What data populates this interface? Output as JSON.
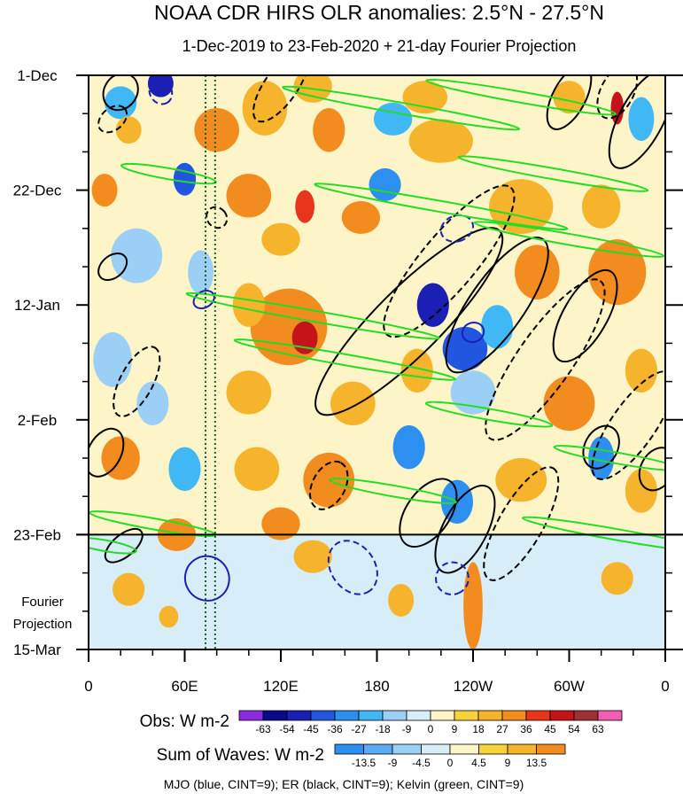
{
  "chart_data": {
    "type": "heatmap",
    "title": "NOAA CDR HIRS OLR anomalies: 2.5°N - 27.5°N",
    "subtitle": "1-Dec-2019 to 23-Feb-2020 + 21-day Fourier Projection",
    "x_axis": {
      "ticks": [
        "0",
        "60E",
        "120E",
        "180",
        "120W",
        "60W",
        "0"
      ],
      "tick_lon": [
        0,
        60,
        120,
        180,
        240,
        300,
        360
      ],
      "range": [
        0,
        360
      ]
    },
    "y_axis": {
      "ticks": [
        "1-Dec",
        "22-Dec",
        "12-Jan",
        "2-Feb",
        "23-Feb",
        "15-Mar"
      ],
      "tick_day": [
        0,
        21,
        42,
        63,
        84,
        105
      ],
      "range_dates": [
        "2019-12-01",
        "2020-03-15"
      ],
      "reversed": true
    },
    "projection_label": [
      "Fourier",
      "Projection"
    ],
    "projection_start": "2020-02-23",
    "reference_lines": [
      {
        "style": "dotted",
        "lon": 73
      },
      {
        "style": "dotted",
        "lon": 79
      }
    ],
    "obs_colorbar": {
      "label": "Obs: W m-2",
      "levels": [
        "-63",
        "-54",
        "-45",
        "-36",
        "-27",
        "-18",
        "-9",
        "0",
        "9",
        "18",
        "27",
        "36",
        "45",
        "54",
        "63"
      ],
      "colors": [
        "#8a2be2",
        "#0a0a8c",
        "#1b1fb4",
        "#2356e0",
        "#2d8ff0",
        "#3fb8f5",
        "#9ccff5",
        "#d7edf7",
        "#fdf5c8",
        "#f7d33a",
        "#f5b42c",
        "#f28c1e",
        "#e8361c",
        "#c4141a",
        "#9e3232",
        "#f05fb4"
      ]
    },
    "wave_colorbar": {
      "label": "Sum of Waves: W m-2",
      "levels": [
        "-13.5",
        "-9",
        "-4.5",
        "0",
        "4.5",
        "9",
        "13.5"
      ],
      "colors": [
        "#2d8ff0",
        "#5aabf2",
        "#9ccff5",
        "#d7edf7",
        "#fdf5c8",
        "#f7d33a",
        "#f5b42c",
        "#f28c1e"
      ]
    },
    "footnote": "MJO (blue, CINT=9); ER (black, CINT=9); Kelvin (green, CINT=9)",
    "series": [
      {
        "wave": "MJO",
        "color": "#1b1fb4",
        "cint": 9
      },
      {
        "wave": "ER",
        "color": "#000000",
        "cint": 9
      },
      {
        "wave": "Kelvin",
        "color": "#22dd22",
        "cint": 9
      }
    ],
    "anomaly_blobs": [
      {
        "lon": 45,
        "day": 1.5,
        "rx": 8,
        "ry": 2.5,
        "v": -54
      },
      {
        "lon": 20,
        "day": 5,
        "rx": 10,
        "ry": 3,
        "v": -27
      },
      {
        "lon": 25,
        "day": 10,
        "rx": 8,
        "ry": 2.5,
        "v": 18
      },
      {
        "lon": 60,
        "day": 19,
        "rx": 7,
        "ry": 3,
        "v": -45
      },
      {
        "lon": 80,
        "day": 10,
        "rx": 14,
        "ry": 4,
        "v": 27
      },
      {
        "lon": 110,
        "day": 6,
        "rx": 14,
        "ry": 5,
        "v": 18
      },
      {
        "lon": 140,
        "day": 2,
        "rx": 12,
        "ry": 3,
        "v": 18
      },
      {
        "lon": 150,
        "day": 10,
        "rx": 10,
        "ry": 4,
        "v": 27
      },
      {
        "lon": 210,
        "day": 4,
        "rx": 14,
        "ry": 3,
        "v": 18
      },
      {
        "lon": 190,
        "day": 8,
        "rx": 12,
        "ry": 3,
        "v": -27
      },
      {
        "lon": 220,
        "day": 12,
        "rx": 20,
        "ry": 4,
        "v": 18
      },
      {
        "lon": 300,
        "day": 4,
        "rx": 10,
        "ry": 3,
        "v": 18
      },
      {
        "lon": 330,
        "day": 6,
        "rx": 4,
        "ry": 3,
        "v": 45
      },
      {
        "lon": 345,
        "day": 8,
        "rx": 8,
        "ry": 4,
        "v": -27
      },
      {
        "lon": 10,
        "day": 21,
        "rx": 8,
        "ry": 3,
        "v": 27
      },
      {
        "lon": 100,
        "day": 22,
        "rx": 14,
        "ry": 4,
        "v": 27
      },
      {
        "lon": 135,
        "day": 24,
        "rx": 6,
        "ry": 3,
        "v": 36
      },
      {
        "lon": 120,
        "day": 30,
        "rx": 12,
        "ry": 3,
        "v": 18
      },
      {
        "lon": 185,
        "day": 20,
        "rx": 10,
        "ry": 3,
        "v": -36
      },
      {
        "lon": 170,
        "day": 26,
        "rx": 12,
        "ry": 3,
        "v": 27
      },
      {
        "lon": 270,
        "day": 24,
        "rx": 20,
        "ry": 5,
        "v": 18
      },
      {
        "lon": 320,
        "day": 24,
        "rx": 12,
        "ry": 4,
        "v": 18
      },
      {
        "lon": 330,
        "day": 36,
        "rx": 18,
        "ry": 6,
        "v": 27
      },
      {
        "lon": 30,
        "day": 33,
        "rx": 16,
        "ry": 5,
        "v": -18
      },
      {
        "lon": 70,
        "day": 36,
        "rx": 8,
        "ry": 4,
        "v": -18
      },
      {
        "lon": 125,
        "day": 46,
        "rx": 24,
        "ry": 7,
        "v": 27
      },
      {
        "lon": 135,
        "day": 48,
        "rx": 8,
        "ry": 3,
        "v": 45
      },
      {
        "lon": 100,
        "day": 42,
        "rx": 10,
        "ry": 4,
        "v": 18
      },
      {
        "lon": 215,
        "day": 42,
        "rx": 10,
        "ry": 4,
        "v": -54
      },
      {
        "lon": 235,
        "day": 50,
        "rx": 14,
        "ry": 4,
        "v": -45
      },
      {
        "lon": 255,
        "day": 46,
        "rx": 10,
        "ry": 4,
        "v": -27
      },
      {
        "lon": 280,
        "day": 36,
        "rx": 14,
        "ry": 5,
        "v": 27
      },
      {
        "lon": 205,
        "day": 54,
        "rx": 10,
        "ry": 4,
        "v": 18
      },
      {
        "lon": 240,
        "day": 58,
        "rx": 14,
        "ry": 4,
        "v": -18
      },
      {
        "lon": 15,
        "day": 52,
        "rx": 12,
        "ry": 5,
        "v": -18
      },
      {
        "lon": 40,
        "day": 60,
        "rx": 10,
        "ry": 4,
        "v": -18
      },
      {
        "lon": 100,
        "day": 58,
        "rx": 14,
        "ry": 4,
        "v": 18
      },
      {
        "lon": 165,
        "day": 60,
        "rx": 14,
        "ry": 4,
        "v": 18
      },
      {
        "lon": 300,
        "day": 60,
        "rx": 16,
        "ry": 5,
        "v": 27
      },
      {
        "lon": 345,
        "day": 54,
        "rx": 10,
        "ry": 4,
        "v": 18
      },
      {
        "lon": 20,
        "day": 70,
        "rx": 12,
        "ry": 4,
        "v": 27
      },
      {
        "lon": 60,
        "day": 72,
        "rx": 10,
        "ry": 4,
        "v": -27
      },
      {
        "lon": 105,
        "day": 72,
        "rx": 14,
        "ry": 4,
        "v": 18
      },
      {
        "lon": 150,
        "day": 74,
        "rx": 16,
        "ry": 5,
        "v": 27
      },
      {
        "lon": 200,
        "day": 68,
        "rx": 10,
        "ry": 4,
        "v": -36
      },
      {
        "lon": 230,
        "day": 78,
        "rx": 10,
        "ry": 4,
        "v": -36
      },
      {
        "lon": 270,
        "day": 74,
        "rx": 16,
        "ry": 4,
        "v": 18
      },
      {
        "lon": 320,
        "day": 70,
        "rx": 8,
        "ry": 4,
        "v": -36
      },
      {
        "lon": 345,
        "day": 76,
        "rx": 10,
        "ry": 4,
        "v": 18
      },
      {
        "lon": 55,
        "day": 84,
        "rx": 12,
        "ry": 3,
        "v": 18
      },
      {
        "lon": 120,
        "day": 82,
        "rx": 12,
        "ry": 3,
        "v": 27
      },
      {
        "lon": 50,
        "day": 99,
        "rx": 6,
        "ry": 2,
        "v": 9
      },
      {
        "lon": 195,
        "day": 96,
        "rx": 8,
        "ry": 3,
        "v": 9
      },
      {
        "lon": 240,
        "day": 97,
        "rx": 6,
        "ry": 8,
        "v": 13.5
      },
      {
        "lon": 140,
        "day": 88,
        "rx": 12,
        "ry": 3,
        "v": 9
      },
      {
        "lon": 330,
        "day": 92,
        "rx": 10,
        "ry": 3,
        "v": 9
      },
      {
        "lon": 70,
        "day": 92,
        "rx": 8,
        "ry": 3,
        "v": -4.5
      },
      {
        "lon": 25,
        "day": 94,
        "rx": 10,
        "ry": 3,
        "v": 9
      }
    ],
    "contours": [
      {
        "wave": "ER",
        "dashed": false,
        "lon": 345,
        "day": 8,
        "rx": 34,
        "ry": 4,
        "rot": -62
      },
      {
        "wave": "ER",
        "dashed": false,
        "lon": 300,
        "day": 4,
        "rx": 22,
        "ry": 3,
        "rot": -62
      },
      {
        "wave": "ER",
        "dashed": true,
        "lon": 330,
        "day": 3,
        "rx": 18,
        "ry": 3,
        "rot": -62
      },
      {
        "wave": "ER",
        "dashed": false,
        "lon": 200,
        "day": 45,
        "rx": 80,
        "ry": 6,
        "rot": -45
      },
      {
        "wave": "ER",
        "dashed": true,
        "lon": 225,
        "day": 34,
        "rx": 60,
        "ry": 5,
        "rot": -50
      },
      {
        "wave": "ER",
        "dashed": false,
        "lon": 255,
        "day": 42,
        "rx": 50,
        "ry": 5,
        "rot": -55
      },
      {
        "wave": "ER",
        "dashed": true,
        "lon": 285,
        "day": 52,
        "rx": 60,
        "ry": 5,
        "rot": -55
      },
      {
        "wave": "ER",
        "dashed": false,
        "lon": 310,
        "day": 44,
        "rx": 32,
        "ry": 4,
        "rot": -60
      },
      {
        "wave": "ER",
        "dashed": true,
        "lon": 340,
        "day": 64,
        "rx": 40,
        "ry": 4,
        "rot": -55
      },
      {
        "wave": "ER",
        "dashed": true,
        "lon": 270,
        "day": 82,
        "rx": 40,
        "ry": 4,
        "rot": -60
      },
      {
        "wave": "ER",
        "dashed": false,
        "lon": 235,
        "day": 83,
        "rx": 30,
        "ry": 4,
        "rot": -62
      },
      {
        "wave": "ER",
        "dashed": false,
        "lon": 212,
        "day": 80,
        "rx": 24,
        "ry": 4,
        "rot": -55
      },
      {
        "wave": "ER",
        "dashed": true,
        "lon": 120,
        "day": 2,
        "rx": 26,
        "ry": 3,
        "rot": -55
      },
      {
        "wave": "ER",
        "dashed": false,
        "lon": 20,
        "day": 3,
        "rx": 12,
        "ry": 3,
        "rot": -55
      },
      {
        "wave": "ER",
        "dashed": true,
        "lon": 15,
        "day": 8,
        "rx": 10,
        "ry": 2,
        "rot": -40
      },
      {
        "wave": "ER",
        "dashed": true,
        "lon": 30,
        "day": 56,
        "rx": 24,
        "ry": 3,
        "rot": -62
      },
      {
        "wave": "ER",
        "dashed": false,
        "lon": 10,
        "day": 69,
        "rx": 16,
        "ry": 3,
        "rot": -62
      },
      {
        "wave": "ER",
        "dashed": false,
        "lon": 22,
        "day": 86,
        "rx": 14,
        "ry": 2,
        "rot": -40
      },
      {
        "wave": "ER",
        "dashed": true,
        "lon": 150,
        "day": 75,
        "rx": 16,
        "ry": 3,
        "rot": -62
      },
      {
        "wave": "ER",
        "dashed": false,
        "lon": 320,
        "day": 68,
        "rx": 14,
        "ry": 3,
        "rot": -62
      },
      {
        "wave": "ER",
        "dashed": false,
        "lon": 355,
        "day": 72,
        "rx": 14,
        "ry": 3,
        "rot": -62
      },
      {
        "wave": "ER",
        "dashed": true,
        "lon": 80,
        "day": 26,
        "rx": 6,
        "ry": 2,
        "rot": -40
      },
      {
        "wave": "ER",
        "dashed": false,
        "lon": 15,
        "day": 35,
        "rx": 10,
        "ry": 2,
        "rot": -40
      },
      {
        "wave": "MJO",
        "dashed": false,
        "lon": 74,
        "day": 92,
        "rx": 14,
        "ry": 4,
        "rot": 55
      },
      {
        "wave": "MJO",
        "dashed": true,
        "lon": 165,
        "day": 90,
        "rx": 18,
        "ry": 4,
        "rot": 55
      },
      {
        "wave": "MJO",
        "dashed": true,
        "lon": 227,
        "day": 92,
        "rx": 10,
        "ry": 3,
        "rot": 60
      },
      {
        "wave": "MJO",
        "dashed": true,
        "lon": 230,
        "day": 28,
        "rx": 8,
        "ry": 3,
        "rot": 70
      },
      {
        "wave": "MJO",
        "dashed": false,
        "lon": 240,
        "day": 47,
        "rx": 6,
        "ry": 2,
        "rot": 70
      },
      {
        "wave": "MJO",
        "dashed": false,
        "lon": 72,
        "day": 41,
        "rx": 5,
        "ry": 2,
        "rot": 60
      },
      {
        "wave": "MJO",
        "dashed": true,
        "lon": 45,
        "day": 3,
        "rx": 8,
        "ry": 2,
        "rot": 60
      },
      {
        "wave": "Kelvin",
        "dashed": false,
        "lon": 195,
        "day": 6,
        "rx": 75,
        "ry": 1,
        "rot": 10
      },
      {
        "wave": "Kelvin",
        "dashed": false,
        "lon": 270,
        "day": 4,
        "rx": 60,
        "ry": 1,
        "rot": 10
      },
      {
        "wave": "Kelvin",
        "dashed": false,
        "lon": 220,
        "day": 24,
        "rx": 80,
        "ry": 1,
        "rot": 10
      },
      {
        "wave": "Kelvin",
        "dashed": false,
        "lon": 140,
        "day": 44,
        "rx": 80,
        "ry": 1,
        "rot": 10
      },
      {
        "wave": "Kelvin",
        "dashed": false,
        "lon": 160,
        "day": 52,
        "rx": 70,
        "ry": 1,
        "rot": 10
      },
      {
        "wave": "Kelvin",
        "dashed": false,
        "lon": 300,
        "day": 30,
        "rx": 60,
        "ry": 1,
        "rot": 10
      },
      {
        "wave": "Kelvin",
        "dashed": false,
        "lon": 50,
        "day": 18,
        "rx": 30,
        "ry": 1,
        "rot": 10
      },
      {
        "wave": "Kelvin",
        "dashed": false,
        "lon": 290,
        "day": 18,
        "rx": 60,
        "ry": 1,
        "rot": 10
      },
      {
        "wave": "Kelvin",
        "dashed": false,
        "lon": 330,
        "day": 70,
        "rx": 40,
        "ry": 1,
        "rot": 10
      },
      {
        "wave": "Kelvin",
        "dashed": false,
        "lon": 190,
        "day": 76,
        "rx": 40,
        "ry": 1,
        "rot": 10
      },
      {
        "wave": "Kelvin",
        "dashed": false,
        "lon": 40,
        "day": 82,
        "rx": 40,
        "ry": 1,
        "rot": 10
      },
      {
        "wave": "Kelvin",
        "dashed": false,
        "lon": 330,
        "day": 84,
        "rx": 60,
        "ry": 1,
        "rot": 10
      },
      {
        "wave": "Kelvin",
        "dashed": false,
        "lon": 10,
        "day": 86,
        "rx": 20,
        "ry": 1,
        "rot": 10
      },
      {
        "wave": "Kelvin",
        "dashed": false,
        "lon": 250,
        "day": 62,
        "rx": 40,
        "ry": 1,
        "rot": 10
      }
    ]
  }
}
